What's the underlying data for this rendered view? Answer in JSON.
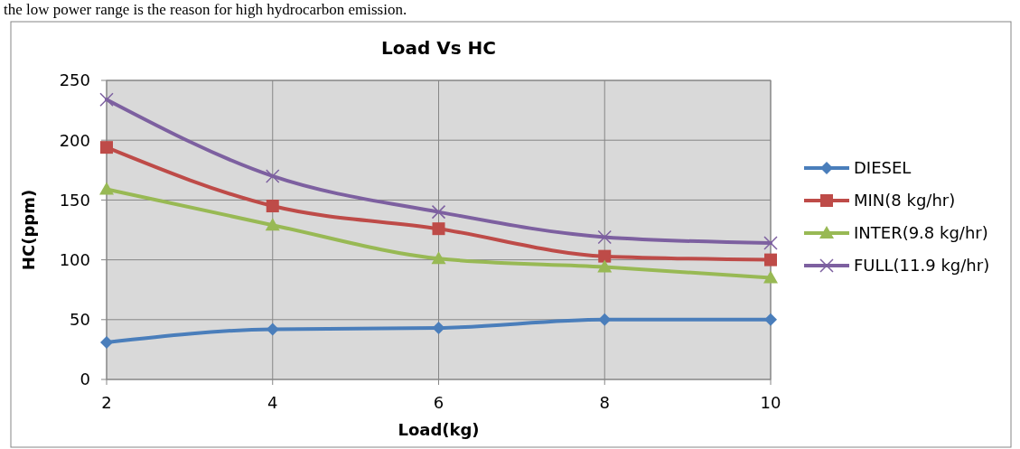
{
  "chart_data": {
    "type": "line",
    "title": "Load Vs HC",
    "xlabel": "Load(kg)",
    "ylabel": "HC(ppm)",
    "annotations": [
      "the low power range is the reason for high hydrocarbon emission."
    ],
    "x": [
      2,
      4,
      6,
      8,
      10
    ],
    "xlim": [
      2,
      10
    ],
    "xticks": [
      2,
      4,
      6,
      8,
      10
    ],
    "ylim": [
      0,
      250
    ],
    "yticks": [
      0,
      50,
      100,
      150,
      200,
      250
    ],
    "grid": true,
    "legend": "right",
    "series": [
      {
        "name": "DIESEL",
        "color": "#4a7ebb",
        "marker": "diamond",
        "values": [
          31,
          42,
          43,
          50,
          50
        ]
      },
      {
        "name": "MIN(8 kg/hr)",
        "color": "#be4b48",
        "marker": "square",
        "values": [
          194,
          145,
          126,
          103,
          100
        ]
      },
      {
        "name": "INTER(9.8 kg/hr)",
        "color": "#98b954",
        "marker": "triangle",
        "values": [
          159,
          129,
          101,
          94,
          85
        ]
      },
      {
        "name": "FULL(11.9 kg/hr)",
        "color": "#7d60a0",
        "marker": "cross",
        "values": [
          234,
          170,
          140,
          119,
          114
        ]
      }
    ]
  }
}
